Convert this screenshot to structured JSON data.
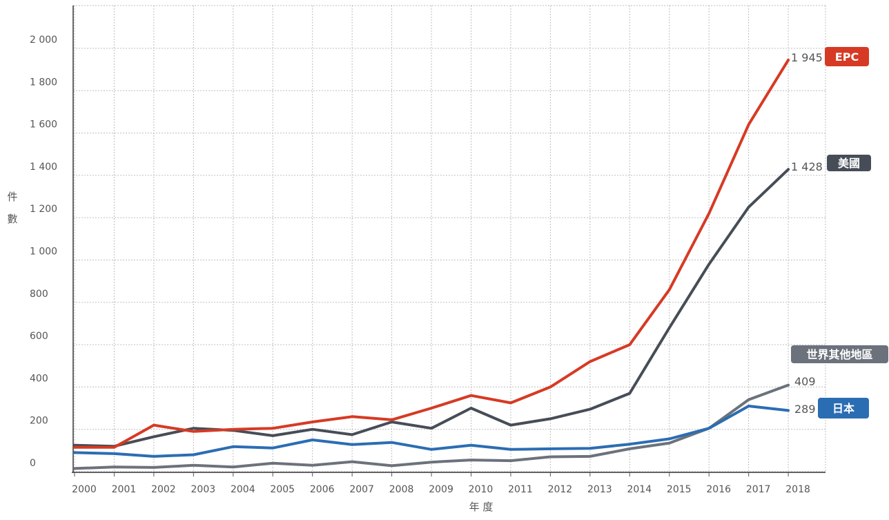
{
  "chart_data": {
    "type": "line",
    "xlabel": "年 度",
    "ylabel": "件 數",
    "ylim": [
      0,
      2200
    ],
    "y_ticks": [
      0,
      200,
      400,
      600,
      800,
      1000,
      1200,
      1400,
      1600,
      1800,
      2000
    ],
    "y_tick_labels": [
      "0",
      "200",
      "400",
      "600",
      "800",
      "1 000",
      "1 200",
      "1 400",
      "1 600",
      "1 800",
      "2 000"
    ],
    "grid": true,
    "x": [
      "2000",
      "2001",
      "2002",
      "2003",
      "2004",
      "2005",
      "2006",
      "2007",
      "2008",
      "2009",
      "2010",
      "2011",
      "2012",
      "2013",
      "2014",
      "2015",
      "2016",
      "2017",
      "2018"
    ],
    "series": [
      {
        "name": "EPC",
        "color": "#d63a24",
        "end_label": "1 945",
        "values": [
          115,
          115,
          220,
          190,
          200,
          205,
          235,
          260,
          245,
          300,
          360,
          325,
          400,
          520,
          600,
          860,
          1220,
          1640,
          1945
        ]
      },
      {
        "name": "美國",
        "color": "#474d57",
        "end_label": "1 428",
        "values": [
          125,
          120,
          165,
          205,
          195,
          170,
          200,
          175,
          235,
          205,
          300,
          220,
          250,
          295,
          370,
          680,
          980,
          1250,
          1428
        ]
      },
      {
        "name": "世界其他地區",
        "color": "#6c727b",
        "end_label": "409",
        "values": [
          15,
          22,
          20,
          30,
          22,
          40,
          30,
          47,
          28,
          45,
          55,
          52,
          70,
          72,
          108,
          135,
          205,
          340,
          409
        ]
      },
      {
        "name": "日本",
        "color": "#2b6db3",
        "end_label": "289",
        "values": [
          90,
          85,
          72,
          80,
          118,
          112,
          150,
          128,
          138,
          105,
          125,
          105,
          108,
          110,
          130,
          155,
          205,
          310,
          289
        ]
      }
    ]
  }
}
